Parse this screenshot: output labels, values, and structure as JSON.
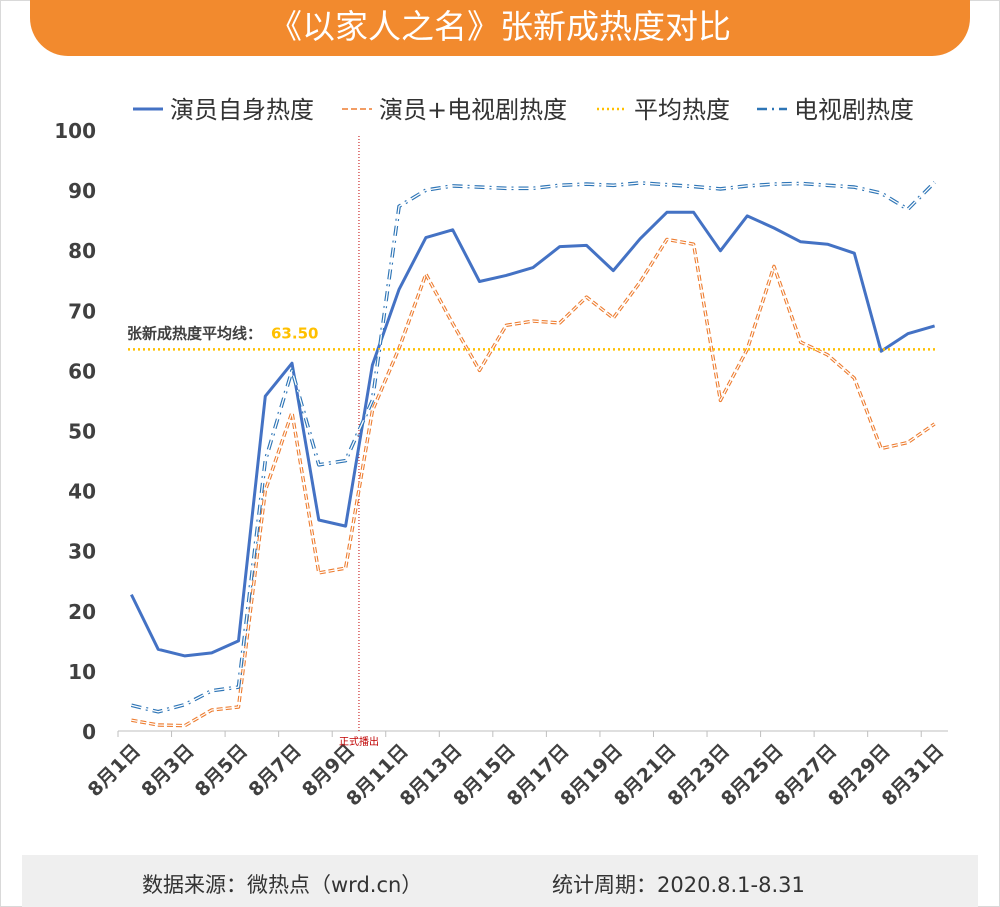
{
  "title": "《以家人之名》张新成热度对比",
  "footer": {
    "source": "数据来源：微热点（wrd.cn）",
    "period": "统计周期：2020.8.1-8.31"
  },
  "colors": {
    "banner": "#f28a2e",
    "actor": "#4472c4",
    "combined": "#ed7d31",
    "average": "#ffc000",
    "drama": "#2e75b6",
    "marker": "#c00000"
  },
  "chart_data": {
    "type": "line",
    "title": "",
    "xlabel": "",
    "ylabel": "",
    "ylim": [
      0,
      100
    ],
    "yticks": [
      0,
      10,
      20,
      30,
      40,
      50,
      60,
      70,
      80,
      90,
      100
    ],
    "x": [
      "8月1日",
      "8月2日",
      "8月3日",
      "8月4日",
      "8月5日",
      "8月6日",
      "8月7日",
      "8月8日",
      "8月9日",
      "8月10日",
      "8月11日",
      "8月12日",
      "8月13日",
      "8月14日",
      "8月15日",
      "8月16日",
      "8月17日",
      "8月18日",
      "8月19日",
      "8月20日",
      "8月21日",
      "8月22日",
      "8月23日",
      "8月24日",
      "8月25日",
      "8月26日",
      "8月27日",
      "8月28日",
      "8月29日",
      "8月30日",
      "8月31日"
    ],
    "xtick_labels": [
      "8月1日",
      "8月3日",
      "8月5日",
      "8月7日",
      "8月9日",
      "8月11日",
      "8月13日",
      "8月15日",
      "8月17日",
      "8月19日",
      "8月21日",
      "8月23日",
      "8月25日",
      "8月27日",
      "8月29日",
      "8月31日"
    ],
    "legend_position": "top",
    "grid": false,
    "series": [
      {
        "name": "演员自身热度",
        "style": "solid",
        "values": [
          22.7,
          13.6,
          12.5,
          13.0,
          15.0,
          55.7,
          61.2,
          35.1,
          34.1,
          60.9,
          73.5,
          82.1,
          83.4,
          74.8,
          75.8,
          77.1,
          80.6,
          80.8,
          76.6,
          81.9,
          86.3,
          86.3,
          79.9,
          85.7,
          83.7,
          81.4,
          81.0,
          79.5,
          63.2,
          66.1,
          67.4
        ]
      },
      {
        "name": "演员+电视剧热度",
        "style": "dashed",
        "values": [
          1.8,
          1.0,
          0.9,
          3.5,
          4.0,
          40.0,
          53.0,
          26.3,
          27.1,
          53.3,
          63.7,
          76.0,
          67.8,
          60.0,
          67.5,
          68.2,
          67.9,
          72.2,
          68.7,
          74.7,
          81.8,
          81.0,
          55.0,
          63.5,
          77.3,
          64.7,
          62.6,
          58.7,
          47.0,
          48.0,
          51.1
        ]
      },
      {
        "name": "平均热度",
        "style": "dotted",
        "values": "constant",
        "constant": 63.5
      },
      {
        "name": "电视剧热度",
        "style": "dashdot",
        "values": [
          4.3,
          3.2,
          4.4,
          6.7,
          7.3,
          45.0,
          60.0,
          44.3,
          45.0,
          55.0,
          87.3,
          90.0,
          90.7,
          90.5,
          90.3,
          90.3,
          90.8,
          91.0,
          90.8,
          91.2,
          90.9,
          90.6,
          90.2,
          90.7,
          91.0,
          91.1,
          90.8,
          90.5,
          89.5,
          86.8,
          91.3
        ]
      }
    ],
    "annotations": {
      "average_label": "张新成热度平均线：",
      "average_value": "63.50",
      "premiere_label": "正式播出",
      "premiere_x": "8月10日"
    }
  }
}
